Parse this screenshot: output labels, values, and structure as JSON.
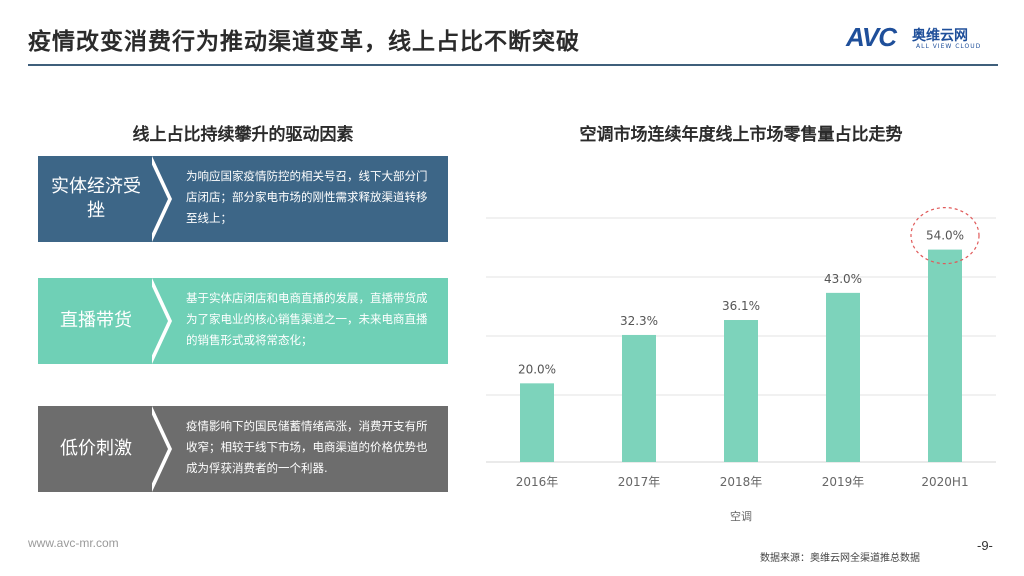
{
  "header": {
    "title": "疫情改变消费行为推动渠道变革，线上占比不断突破",
    "logo_mark": "AVC",
    "logo_cn": "奥维云网",
    "logo_en": "ALL VIEW CLOUD"
  },
  "left": {
    "heading": "线上占比持续攀升的驱动因素",
    "cards": [
      {
        "label": "实体经济受挫",
        "text": "为响应国家疫情防控的相关号召，线下大部分门店闭店；部分家电市场的刚性需求释放渠道转移至线上；"
      },
      {
        "label": "直播带货",
        "text": "基于实体店闭店和电商直播的发展，直播带货成为了家电业的核心销售渠道之一，未来电商直播的销售形式或将常态化；"
      },
      {
        "label": "低价刺激",
        "text": "疫情影响下的国民储蓄情绪高涨，消费开支有所收窄；相较于线下市场，电商渠道的价格优势也成为俘获消费者的一个利器."
      }
    ]
  },
  "chart_data": {
    "type": "bar",
    "title": "空调市场连续年度线上市场零售量占比走势",
    "categories": [
      "2016年",
      "2017年",
      "2018年",
      "2019年",
      "2020H1"
    ],
    "values": [
      20.0,
      32.3,
      36.1,
      43.0,
      54.0
    ],
    "value_labels": [
      "20.0%",
      "32.3%",
      "36.1%",
      "43.0%",
      "54.0%"
    ],
    "xlabel": "空调",
    "ylabel": "",
    "ylim": [
      0,
      60
    ],
    "grid": true,
    "highlight_category": "2020H1",
    "colors": {
      "bar": "#7dd3bb",
      "highlight_circle": "#e05a5a",
      "grid": "#e3e3e3"
    }
  },
  "footer": {
    "url": "www.avc-mr.com",
    "source": "数据来源：奥维云网全渠道推总数据",
    "page": "-9-"
  },
  "colors": {
    "title_rule": "#3f5f7b",
    "card1": "#3d6687",
    "card2": "#6fd0b6",
    "card3": "#6d6d6d",
    "brand": "#1f4f9a"
  }
}
